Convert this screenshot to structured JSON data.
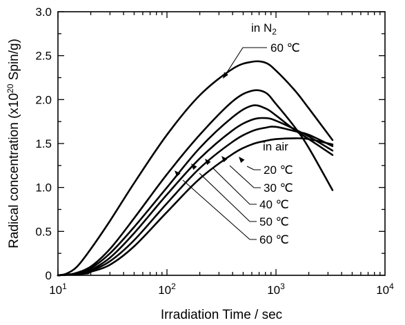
{
  "chart_data": {
    "type": "line",
    "xlabel": "Irradiation Time   / sec",
    "ylabel_main": "Radical concentration (x10",
    "ylabel_exp": "20",
    "ylabel_tail": " Spin/g)",
    "xscale": "log",
    "xlim": [
      10,
      10000
    ],
    "ylim": [
      0,
      3.0
    ],
    "grid": false,
    "x_ticks": [
      {
        "base": "10",
        "exp": "1",
        "value": 10
      },
      {
        "base": "10",
        "exp": "2",
        "value": 100
      },
      {
        "base": "10",
        "exp": "3",
        "value": 1000
      },
      {
        "base": "10",
        "exp": "4",
        "value": 10000
      }
    ],
    "y_ticks": [
      {
        "label": "0",
        "value": 0
      },
      {
        "label": "0.5",
        "value": 0.5
      },
      {
        "label": "1.0",
        "value": 1.0
      },
      {
        "label": "1.5",
        "value": 1.5
      },
      {
        "label": "2.0",
        "value": 2.0
      },
      {
        "label": "2.5",
        "value": 2.5
      },
      {
        "label": "3.0",
        "value": 3.0
      }
    ],
    "group_labels": {
      "n2_main": "in N",
      "n2_sub": "2",
      "air": "in air"
    },
    "series": [
      {
        "group": "n2",
        "label": "60 ℃",
        "x": [
          10,
          12,
          15,
          20,
          30,
          50,
          100,
          200,
          400,
          600,
          800,
          1000,
          1500,
          2000,
          3300
        ],
        "y": [
          0,
          0.02,
          0.1,
          0.3,
          0.62,
          1.05,
          1.6,
          2.05,
          2.35,
          2.43,
          2.42,
          2.33,
          2.1,
          1.9,
          1.54
        ]
      },
      {
        "group": "air",
        "label": "20 ℃",
        "x": [
          10,
          14,
          20,
          30,
          50,
          100,
          200,
          400,
          600,
          800,
          1000,
          1500,
          2000,
          3300
        ],
        "y": [
          0,
          0.02,
          0.1,
          0.3,
          0.65,
          1.15,
          1.6,
          1.98,
          2.1,
          2.08,
          1.95,
          1.68,
          1.45,
          0.97
        ]
      },
      {
        "group": "air",
        "label": "30 ℃",
        "x": [
          10,
          15,
          20,
          30,
          50,
          100,
          200,
          400,
          600,
          800,
          1000,
          1500,
          2000,
          3300
        ],
        "y": [
          0,
          0.02,
          0.08,
          0.25,
          0.55,
          1.0,
          1.45,
          1.8,
          1.93,
          1.9,
          1.82,
          1.65,
          1.55,
          1.37
        ]
      },
      {
        "group": "air",
        "label": "40 ℃",
        "x": [
          10,
          16,
          20,
          30,
          50,
          100,
          200,
          400,
          600,
          800,
          1000,
          1500,
          2000,
          3300
        ],
        "y": [
          0,
          0.02,
          0.06,
          0.2,
          0.48,
          0.92,
          1.33,
          1.65,
          1.77,
          1.79,
          1.76,
          1.66,
          1.58,
          1.42
        ]
      },
      {
        "group": "air",
        "label": "50 ℃",
        "x": [
          10,
          17,
          20,
          30,
          50,
          100,
          200,
          400,
          600,
          800,
          1000,
          1500,
          2000,
          3300
        ],
        "y": [
          0,
          0.02,
          0.05,
          0.16,
          0.4,
          0.82,
          1.22,
          1.52,
          1.64,
          1.68,
          1.69,
          1.64,
          1.6,
          1.47
        ]
      },
      {
        "group": "air",
        "label": "60 ℃",
        "x": [
          10,
          18,
          20,
          30,
          50,
          100,
          200,
          400,
          600,
          800,
          1000,
          1500,
          2000,
          3300
        ],
        "y": [
          0,
          0.02,
          0.04,
          0.12,
          0.33,
          0.72,
          1.1,
          1.38,
          1.49,
          1.53,
          1.55,
          1.56,
          1.55,
          1.49
        ]
      }
    ]
  }
}
